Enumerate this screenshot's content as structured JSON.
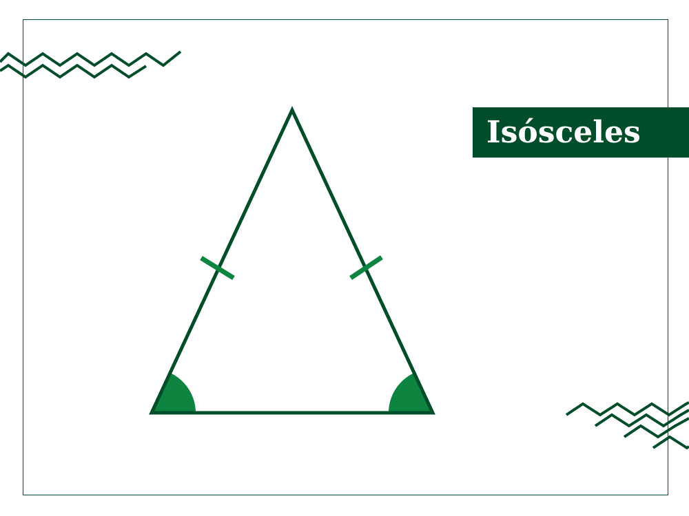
{
  "label": {
    "text": "Isósceles"
  },
  "colors": {
    "dark_green": "#004d2a",
    "accent_green": "#0d8540",
    "background": "#ffffff"
  },
  "shapes": {
    "triangle": "isosceles",
    "equal_side_marks": 2,
    "equal_angle_marks": 2,
    "decorations": [
      "zigzag-lines-top-left",
      "zigzag-lines-bottom-right"
    ]
  }
}
